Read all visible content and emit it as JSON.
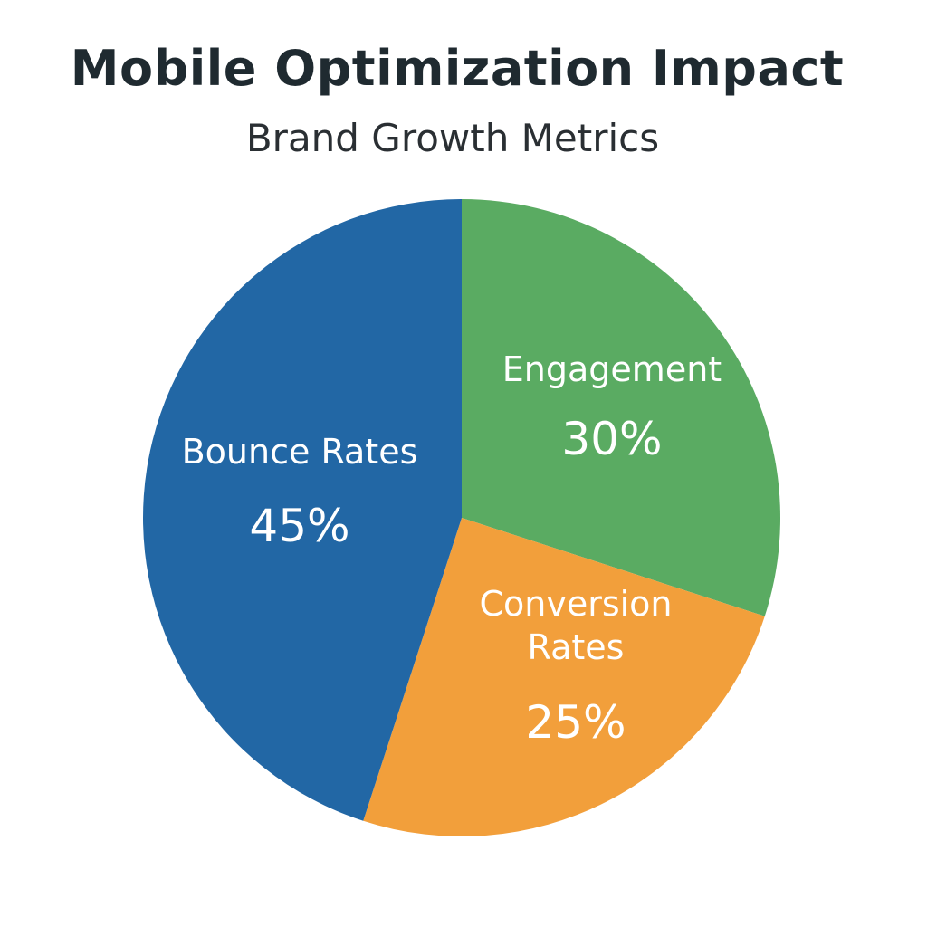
{
  "chart_data": {
    "type": "pie",
    "title": "Mobile Optimization Impact",
    "subtitle": "Brand Growth Metrics",
    "slices": [
      {
        "label_lines": [
          "Engagement"
        ],
        "value": 30,
        "value_label": "30%",
        "color": "#5aab62"
      },
      {
        "label_lines": [
          "Conversion",
          "Rates"
        ],
        "value": 25,
        "value_label": "25%",
        "color": "#f29f3b"
      },
      {
        "label_lines": [
          "Bounce Rates"
        ],
        "value": 45,
        "value_label": "45%",
        "color": "#2267a5"
      }
    ]
  }
}
